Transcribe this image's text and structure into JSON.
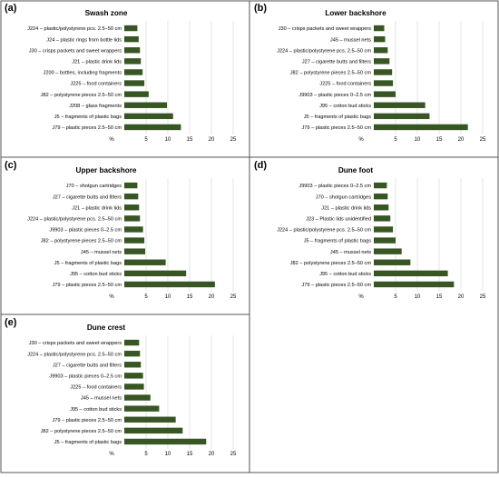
{
  "chart_data": [
    {
      "type": "bar",
      "panel": "(a)",
      "title": "Swash zone",
      "axis_unit_label": "%",
      "xlim": [
        0,
        25
      ],
      "xticks": [
        "5",
        "10",
        "15",
        "20",
        "25"
      ],
      "bar_color": "#375623",
      "grid": true,
      "categories": [
        "J224 – plastic/polystyrene pcs. 2.5–50 cm",
        "J24 – plastic rings from bottle lids",
        "J30 – crisps packets and sweet wrappers",
        "J21 – plastic drink lids",
        "J200 – bottles, including fragments",
        "J225 – food containers",
        "J82 – polystyrene pieces 2.5–50 cm",
        "J208 – glass fragments",
        "J5 – fragments of plastic bags",
        "J79 – plastic pieces 2.5–50 cm"
      ],
      "values": [
        3,
        3.3,
        3.6,
        3.8,
        4.2,
        4.6,
        5.6,
        9.8,
        11.2,
        13
      ]
    },
    {
      "type": "bar",
      "panel": "(b)",
      "title": "Lower backshore",
      "axis_unit_label": "%",
      "xlim": [
        0,
        25
      ],
      "xticks": [
        "5",
        "10",
        "15",
        "20",
        "25"
      ],
      "bar_color": "#375623",
      "grid": true,
      "categories": [
        "J30 – crisps packets and sweet wrappers",
        "J45 – mussel nets",
        "J224 – plastic/polystyrene pcs. 2.5–50 cm",
        "J27 – cigarette butts and filters",
        "J82 – polystyrene pieces 2.5–50 cm",
        "J225 – food containers",
        "J9903 – plastic pieces 0–2.5 cm",
        "J95 – cotton bud sticks",
        "J5 – fragments of plastic bags",
        "J79 – plastic pieces 2.5–50 cm"
      ],
      "values": [
        2.4,
        2.6,
        3.2,
        3.6,
        4.2,
        4.4,
        5.0,
        11.8,
        12.8,
        21.6
      ]
    },
    {
      "type": "bar",
      "panel": "(c)",
      "title": "Upper backshore",
      "axis_unit_label": "%",
      "xlim": [
        0,
        25
      ],
      "xticks": [
        "5",
        "10",
        "15",
        "20",
        "25"
      ],
      "bar_color": "#375623",
      "grid": true,
      "categories": [
        "J70 – shotgun cartridges",
        "J27 – cigarette butts and filters",
        "J21 – plastic drink lids",
        "J224 – plastic/polystyrene pcs. 2.5–50 cm",
        "J9903 – plastic pieces 0–2.5 cm",
        "J82 – polystyrene pieces 2.5–50 cm",
        "J45 – mussel nets",
        "J5 – fragments of plastic bags",
        "J95 – cotton bud sticks",
        "J79 – plastic pieces 2.5–50 cm"
      ],
      "values": [
        3.0,
        3.2,
        3.4,
        3.6,
        4.3,
        4.6,
        4.8,
        9.5,
        14.2,
        20.8
      ]
    },
    {
      "type": "bar",
      "panel": "(d)",
      "title": "Dune foot",
      "axis_unit_label": "%",
      "xlim": [
        0,
        25
      ],
      "xticks": [
        "5",
        "10",
        "15",
        "20",
        "25"
      ],
      "bar_color": "#375623",
      "grid": true,
      "categories": [
        "J9903 – plastic pieces 0–2.5 cm",
        "J70 – shotgun cartridges",
        "J21 – plastic drink lids",
        "J23 – Plastic lids unidentified",
        "J224 – plastic/polystyrene pcs. 2.5–50 cm",
        "J5 – fragments of plastic bags",
        "J45 – mussel nets",
        "J82 – polystyrene pieces 2.5–50 cm",
        "J95 – cotton bud sticks",
        "J79 – plastic pieces 2.5–50 cm"
      ],
      "values": [
        3.0,
        3.2,
        3.4,
        3.8,
        4.4,
        5.0,
        6.4,
        8.4,
        17.0,
        18.4
      ]
    },
    {
      "type": "bar",
      "panel": "(e)",
      "title": "Dune crest",
      "axis_unit_label": "%",
      "xlim": [
        0,
        25
      ],
      "xticks": [
        "5",
        "10",
        "15",
        "20",
        "25"
      ],
      "bar_color": "#375623",
      "grid": true,
      "categories": [
        "J30 – crisps packets and sweet wrappers",
        "J224 – plastic/polystyrene pcs. 2.5–50 cm",
        "J27 – cigarette butts and filters",
        "J9903 – plastic pieces 0–2.5 cm",
        "J225 – food containers",
        "J45 – mussel nets",
        "J95 – cotton bud sticks",
        "J79 – plastic pieces 2.5–50 cm",
        "J82 – polystyrene pieces 2.5–50 cm",
        "J5 – fragments of plastic bags"
      ],
      "values": [
        3.4,
        3.6,
        3.8,
        4.3,
        4.5,
        6.0,
        8.0,
        11.8,
        13.4,
        18.8
      ]
    }
  ]
}
